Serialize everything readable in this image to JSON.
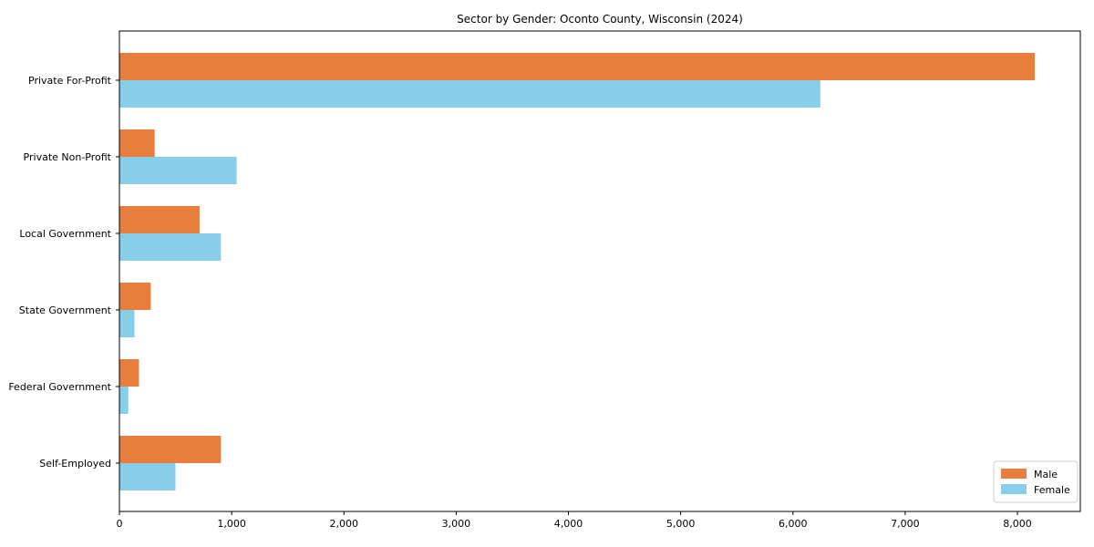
{
  "chart_data": {
    "type": "bar",
    "orientation": "horizontal",
    "title": "Sector by Gender: Oconto County, Wisconsin (2024)",
    "categories": [
      "Private For-Profit",
      "Private Non-Profit",
      "Local Government",
      "State Government",
      "Federal Government",
      "Self-Employed"
    ],
    "series": [
      {
        "name": "Male",
        "color": "#e87e3e",
        "values": [
          8150,
          310,
          710,
          275,
          170,
          900
        ]
      },
      {
        "name": "Female",
        "color": "#87ceeb",
        "values": [
          6240,
          1040,
          900,
          130,
          75,
          495
        ]
      }
    ],
    "xlabel": "",
    "ylabel": "",
    "xlim": [
      0,
      8560
    ],
    "xticks": [
      0,
      1000,
      2000,
      3000,
      4000,
      5000,
      6000,
      7000,
      8000
    ],
    "xticklabels": [
      "0",
      "1,000",
      "2,000",
      "3,000",
      "4,000",
      "5,000",
      "6,000",
      "7,000",
      "8,000"
    ],
    "grid": false,
    "legend_position": "lower right",
    "axis_color": "#000000",
    "legend_border_color": "#cccccc",
    "background_color": "#ffffff"
  }
}
